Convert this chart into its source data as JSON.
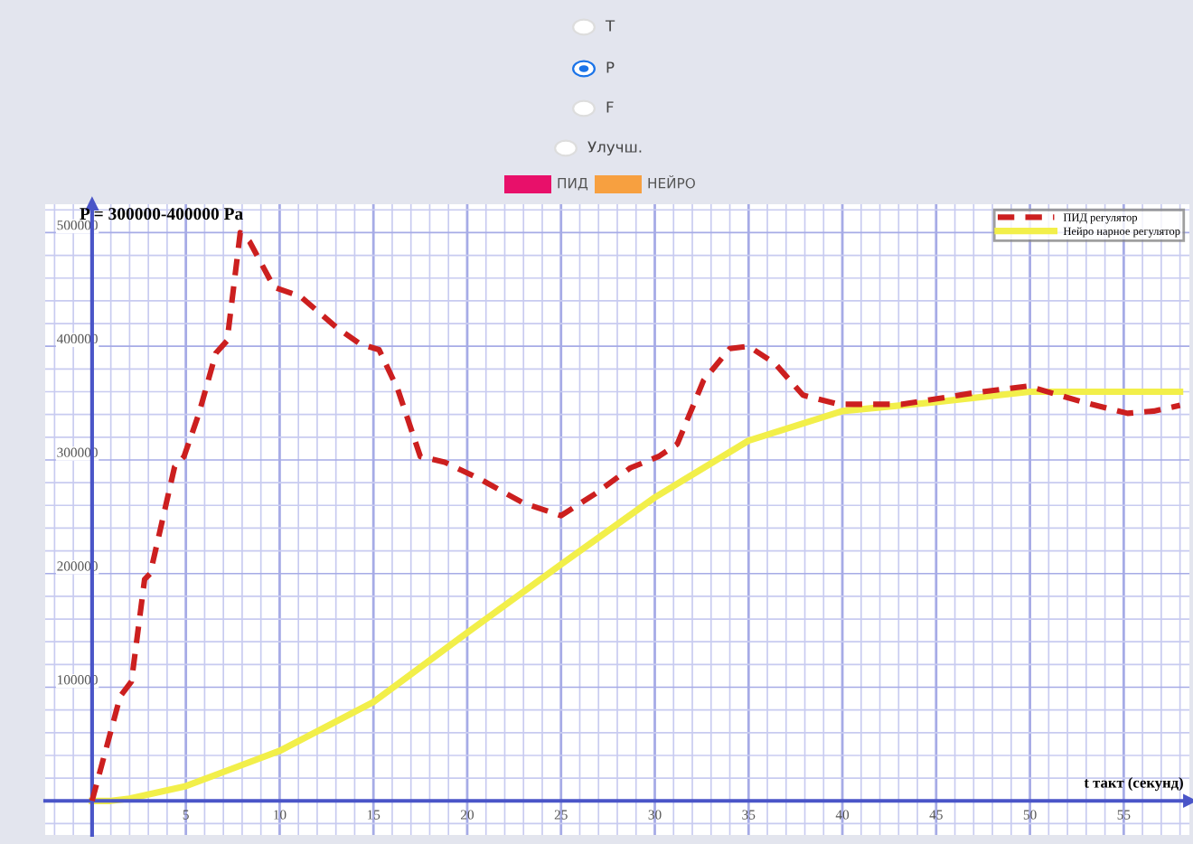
{
  "chart_data": {
    "type": "line",
    "title": "P = 300000-400000 Pa",
    "xlabel": "t такт (секунд)",
    "annotations": [
      "T",
      "P",
      "F",
      "Улучш.",
      "ПИД",
      "НЕЙРО"
    ],
    "xlim": [
      -2.5,
      58.5
    ],
    "ylim": [
      -30000,
      525000
    ],
    "xticks": [
      5,
      10,
      15,
      20,
      25,
      30,
      35,
      40,
      45,
      50,
      55
    ],
    "yticks": [
      100000,
      200000,
      300000,
      400000,
      500000
    ],
    "grid": true,
    "legend": "top right",
    "line_style": "solid",
    "marker": "none",
    "series": [
      {
        "name": "ПИД регулятор",
        "color": "#cc1f1f",
        "line_style": "dashed",
        "x": [
          0,
          1.5,
          2.1,
          2.8,
          3.1,
          4.4,
          4.9,
          5.7,
          6.6,
          7.2,
          7.9,
          8.4,
          9.7,
          11.1,
          13.0,
          14.3,
          15.3,
          16.3,
          17.5,
          18.8,
          20.7,
          23.0,
          25.0,
          26.8,
          28.7,
          30.2,
          31.2,
          32.6,
          34.0,
          35.0,
          36.4,
          37.9,
          39.8,
          43.2,
          47.0,
          49.9,
          52.8,
          55.2,
          56.6,
          58.0
        ],
        "values": [
          0,
          92000,
          105000,
          195000,
          200000,
          294000,
          303000,
          341000,
          394000,
          405000,
          500000,
          492000,
          452000,
          444000,
          417000,
          402000,
          397000,
          362000,
          303000,
          298000,
          283000,
          262000,
          251000,
          270000,
          293000,
          303000,
          314000,
          370000,
          398000,
          400000,
          385000,
          357000,
          349000,
          349000,
          359000,
          365000,
          351000,
          341000,
          343000,
          348000
        ]
      },
      {
        "name": "Нейро нарное регулятор",
        "color": "#f2ef4a",
        "x": [
          0,
          1,
          2,
          5,
          10,
          15,
          20,
          25,
          30,
          35,
          40,
          45,
          50,
          52.6,
          58
        ],
        "values": [
          0,
          0,
          2000,
          13000,
          44000,
          87000,
          148000,
          208000,
          267000,
          317000,
          343000,
          351000,
          360000,
          360000,
          360000
        ]
      }
    ]
  }
}
